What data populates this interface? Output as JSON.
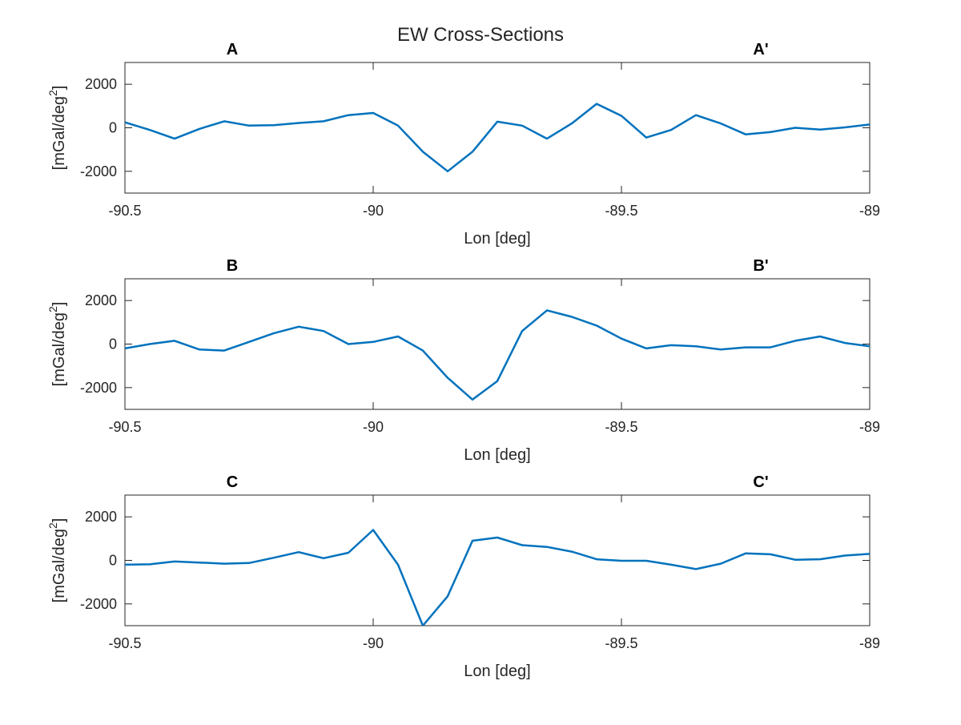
{
  "title": "EW Cross-Sections",
  "colors": {
    "line": "#0072BD",
    "axis": "#262626",
    "background": "#ffffff"
  },
  "chart_data": [
    {
      "type": "line",
      "left_label": "A",
      "right_label": "A'",
      "xlabel": "Lon [deg]",
      "ylabel": "[mGal/deg",
      "ylabel_sup": "2",
      "ylabel_end": "]",
      "xlim": [
        -90.5,
        -89
      ],
      "ylim": [
        -3000,
        3000
      ],
      "xticks": [
        -90.5,
        -90,
        -89.5,
        -89
      ],
      "xtick_labels": [
        "-90.5",
        "-90",
        "-89.5",
        "-89"
      ],
      "yticks": [
        -2000,
        0,
        2000
      ],
      "ytick_labels": [
        "-2000",
        "0",
        "2000"
      ],
      "grid": false,
      "x": [
        -90.5,
        -90.45,
        -90.4,
        -90.35,
        -90.3,
        -90.25,
        -90.2,
        -90.15,
        -90.1,
        -90.05,
        -90,
        -89.95,
        -89.9,
        -89.85,
        -89.8,
        -89.75,
        -89.7,
        -89.65,
        -89.6,
        -89.55,
        -89.5,
        -89.45,
        -89.4,
        -89.35,
        -89.3,
        -89.25,
        -89.2,
        -89.15,
        -89.1,
        -89.05,
        -89
      ],
      "y": [
        250,
        -100,
        -500,
        -50,
        300,
        100,
        120,
        220,
        300,
        580,
        680,
        100,
        -1100,
        -2000,
        -1100,
        280,
        100,
        -500,
        200,
        1100,
        550,
        -450,
        -100,
        580,
        200,
        -300,
        -200,
        0,
        -80,
        20,
        150
      ]
    },
    {
      "type": "line",
      "left_label": "B",
      "right_label": "B'",
      "xlabel": "Lon [deg]",
      "ylabel": "[mGal/deg",
      "ylabel_sup": "2",
      "ylabel_end": "]",
      "xlim": [
        -90.5,
        -89
      ],
      "ylim": [
        -3000,
        3000
      ],
      "xticks": [
        -90.5,
        -90,
        -89.5,
        -89
      ],
      "xtick_labels": [
        "-90.5",
        "-90",
        "-89.5",
        "-89"
      ],
      "yticks": [
        -2000,
        0,
        2000
      ],
      "ytick_labels": [
        "-2000",
        "0",
        "2000"
      ],
      "grid": false,
      "x": [
        -90.5,
        -90.45,
        -90.4,
        -90.35,
        -90.3,
        -90.25,
        -90.2,
        -90.15,
        -90.1,
        -90.05,
        -90,
        -89.95,
        -89.9,
        -89.85,
        -89.8,
        -89.75,
        -89.7,
        -89.65,
        -89.6,
        -89.55,
        -89.5,
        -89.45,
        -89.4,
        -89.35,
        -89.3,
        -89.25,
        -89.2,
        -89.15,
        -89.1,
        -89.05,
        -89
      ],
      "y": [
        -200,
        0,
        150,
        -250,
        -300,
        100,
        500,
        800,
        600,
        0,
        100,
        350,
        -300,
        -1550,
        -2550,
        -1700,
        600,
        1550,
        1250,
        850,
        250,
        -200,
        -50,
        -100,
        -250,
        -150,
        -150,
        150,
        350,
        50,
        -100
      ]
    },
    {
      "type": "line",
      "left_label": "C",
      "right_label": "C'",
      "xlabel": "Lon [deg]",
      "ylabel": "[mGal/deg",
      "ylabel_sup": "2",
      "ylabel_end": "]",
      "xlim": [
        -90.5,
        -89
      ],
      "ylim": [
        -3000,
        3000
      ],
      "xticks": [
        -90.5,
        -90,
        -89.5,
        -89
      ],
      "xtick_labels": [
        "-90.5",
        "-90",
        "-89.5",
        "-89"
      ],
      "yticks": [
        -2000,
        0,
        2000
      ],
      "ytick_labels": [
        "-2000",
        "0",
        "2000"
      ],
      "grid": false,
      "x": [
        -90.5,
        -90.45,
        -90.4,
        -90.35,
        -90.3,
        -90.25,
        -90.2,
        -90.15,
        -90.1,
        -90.05,
        -90,
        -89.95,
        -89.9,
        -89.85,
        -89.8,
        -89.75,
        -89.7,
        -89.65,
        -89.6,
        -89.55,
        -89.5,
        -89.45,
        -89.4,
        -89.35,
        -89.3,
        -89.25,
        -89.2,
        -89.15,
        -89.1,
        -89.05,
        -89
      ],
      "y": [
        -200,
        -180,
        -50,
        -100,
        -150,
        -120,
        120,
        380,
        100,
        350,
        1400,
        -200,
        -3000,
        -1650,
        900,
        1050,
        700,
        620,
        400,
        50,
        -20,
        -20,
        -200,
        -400,
        -150,
        320,
        280,
        30,
        50,
        220,
        300
      ]
    }
  ]
}
